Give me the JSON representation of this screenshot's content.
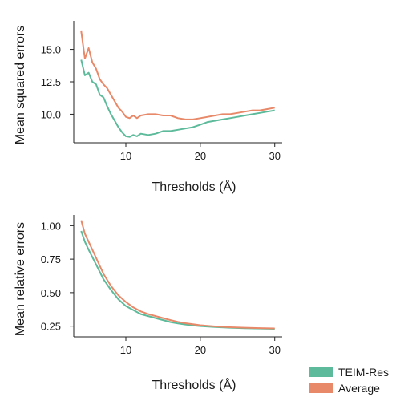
{
  "chart_data": [
    {
      "type": "line",
      "xlabel": "Thresholds (Å)",
      "ylabel": "Mean squared errors",
      "xlim": [
        3,
        31
      ],
      "ylim": [
        7.8,
        17.2
      ],
      "xticks": [
        10,
        20,
        30
      ],
      "yticks": [
        10.0,
        12.5,
        15.0
      ],
      "xtick_labels": [
        "10",
        "20",
        "30"
      ],
      "ytick_labels": [
        "10.0",
        "12.5",
        "15.0"
      ],
      "grid": false,
      "series": [
        {
          "name": "TEIM-Res",
          "color": "#5dbb9b",
          "x": [
            4,
            4.5,
            5,
            5.5,
            6,
            6.5,
            7,
            7.5,
            8,
            8.5,
            9,
            9.5,
            10,
            10.5,
            11,
            11.5,
            12,
            13,
            14,
            15,
            16,
            17,
            18,
            19,
            20,
            21,
            22,
            23,
            24,
            25,
            26,
            27,
            28,
            29,
            30
          ],
          "values": [
            14.2,
            13.0,
            13.2,
            12.5,
            12.3,
            11.5,
            11.3,
            10.6,
            10.0,
            9.5,
            9.0,
            8.6,
            8.3,
            8.25,
            8.4,
            8.3,
            8.5,
            8.4,
            8.5,
            8.7,
            8.7,
            8.8,
            8.9,
            9.0,
            9.2,
            9.4,
            9.5,
            9.6,
            9.7,
            9.8,
            9.9,
            10.0,
            10.1,
            10.2,
            10.3
          ]
        },
        {
          "name": "Average",
          "color": "#e8896a",
          "x": [
            4,
            4.5,
            5,
            5.5,
            6,
            6.5,
            7,
            7.5,
            8,
            8.5,
            9,
            9.5,
            10,
            10.5,
            11,
            11.5,
            12,
            13,
            14,
            15,
            16,
            17,
            18,
            19,
            20,
            21,
            22,
            23,
            24,
            25,
            26,
            27,
            28,
            29,
            30
          ],
          "values": [
            16.4,
            14.3,
            15.1,
            14.0,
            13.5,
            12.7,
            12.3,
            12.0,
            11.5,
            11.0,
            10.5,
            10.2,
            9.8,
            9.7,
            9.9,
            9.7,
            9.9,
            10.0,
            10.0,
            9.9,
            9.9,
            9.7,
            9.6,
            9.6,
            9.7,
            9.8,
            9.9,
            10.0,
            10.0,
            10.1,
            10.2,
            10.3,
            10.3,
            10.4,
            10.5
          ]
        }
      ]
    },
    {
      "type": "line",
      "xlabel": "Thresholds (Å)",
      "ylabel": "Mean relative errors",
      "xlim": [
        3,
        31
      ],
      "ylim": [
        0.17,
        1.08
      ],
      "xticks": [
        10,
        20,
        30
      ],
      "yticks": [
        0.25,
        0.5,
        0.75,
        1.0
      ],
      "xtick_labels": [
        "10",
        "20",
        "30"
      ],
      "ytick_labels": [
        "0.25",
        "0.50",
        "0.75",
        "1.00"
      ],
      "grid": false,
      "series": [
        {
          "name": "TEIM-Res",
          "color": "#5dbb9b",
          "x": [
            4,
            4.5,
            5,
            6,
            7,
            8,
            9,
            10,
            11,
            12,
            13,
            14,
            15,
            16,
            17,
            18,
            19,
            20,
            22,
            24,
            26,
            28,
            30
          ],
          "values": [
            0.96,
            0.88,
            0.82,
            0.71,
            0.6,
            0.52,
            0.45,
            0.4,
            0.37,
            0.34,
            0.325,
            0.31,
            0.295,
            0.28,
            0.27,
            0.262,
            0.255,
            0.25,
            0.243,
            0.238,
            0.234,
            0.232,
            0.23
          ]
        },
        {
          "name": "Average",
          "color": "#e8896a",
          "x": [
            4,
            4.5,
            5,
            6,
            7,
            8,
            9,
            10,
            11,
            12,
            13,
            14,
            15,
            16,
            17,
            18,
            19,
            20,
            22,
            24,
            26,
            28,
            30
          ],
          "values": [
            1.04,
            0.94,
            0.88,
            0.76,
            0.64,
            0.55,
            0.48,
            0.43,
            0.39,
            0.36,
            0.34,
            0.325,
            0.31,
            0.295,
            0.282,
            0.272,
            0.264,
            0.257,
            0.248,
            0.242,
            0.238,
            0.235,
            0.233
          ]
        }
      ]
    }
  ],
  "legend": {
    "placement": "bottom-right",
    "entries": [
      {
        "label": "TEIM-Res",
        "color": "#5dbb9b"
      },
      {
        "label": "Average",
        "color": "#e8896a"
      }
    ]
  }
}
